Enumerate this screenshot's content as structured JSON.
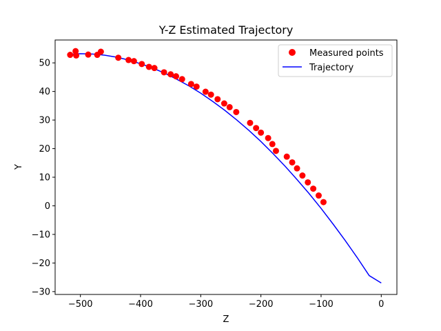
{
  "chart_data": {
    "type": "scatter",
    "title": "Y-Z Estimated Trajectory",
    "xlabel": "Z",
    "ylabel": "Y",
    "xlim": [
      -542,
      26
    ],
    "ylim": [
      -31,
      58
    ],
    "x_ticks": [
      -500,
      -400,
      -300,
      -200,
      -100,
      0
    ],
    "y_ticks": [
      -30,
      -20,
      -10,
      0,
      10,
      20,
      30,
      40,
      50
    ],
    "grid": false,
    "legend_position": "upper-right",
    "legend": [
      "Measured points",
      "Trajectory"
    ],
    "colors": {
      "measured": "#ff0000",
      "trajectory": "#0000ff",
      "axes": "#000000"
    },
    "series": [
      {
        "name": "Measured points",
        "kind": "scatter",
        "x": [
          -517,
          -508,
          -507,
          -487,
          -472,
          -466,
          -437,
          -420,
          -411,
          -398,
          -386,
          -377,
          -361,
          -350,
          -341,
          -331,
          -316,
          -307,
          -292,
          -283,
          -272,
          -261,
          -252,
          -241,
          -218,
          -208,
          -200,
          -188,
          -181,
          -175,
          -157,
          -148,
          -140,
          -131,
          -122,
          -113,
          -104,
          -96
        ],
        "y": [
          52.8,
          54.1,
          52.6,
          52.9,
          52.8,
          53.9,
          51.8,
          51.0,
          50.6,
          49.6,
          48.6,
          48.2,
          46.7,
          46.0,
          45.3,
          44.3,
          42.6,
          41.7,
          39.9,
          38.9,
          37.3,
          35.8,
          34.5,
          32.8,
          29.0,
          27.2,
          25.6,
          23.7,
          21.6,
          19.2,
          17.2,
          15.2,
          13.1,
          10.6,
          8.2,
          6.0,
          3.6,
          1.3
        ]
      },
      {
        "name": "Trajectory",
        "kind": "line",
        "x": [
          -517,
          -500,
          -480,
          -460,
          -440,
          -420,
          -400,
          -380,
          -360,
          -340,
          -320,
          -300,
          -280,
          -260,
          -240,
          -220,
          -200,
          -180,
          -160,
          -140,
          -120,
          -100,
          -80,
          -60,
          -40,
          -20,
          0
        ],
        "y": [
          53.0,
          53.2,
          53.1,
          52.7,
          52.0,
          51.0,
          49.7,
          48.2,
          46.4,
          44.3,
          42.0,
          39.4,
          36.5,
          33.4,
          30.0,
          26.4,
          22.5,
          18.3,
          13.9,
          9.2,
          4.3,
          -0.9,
          -6.4,
          -12.1,
          -18.1,
          -24.4,
          -27.0
        ]
      }
    ]
  }
}
